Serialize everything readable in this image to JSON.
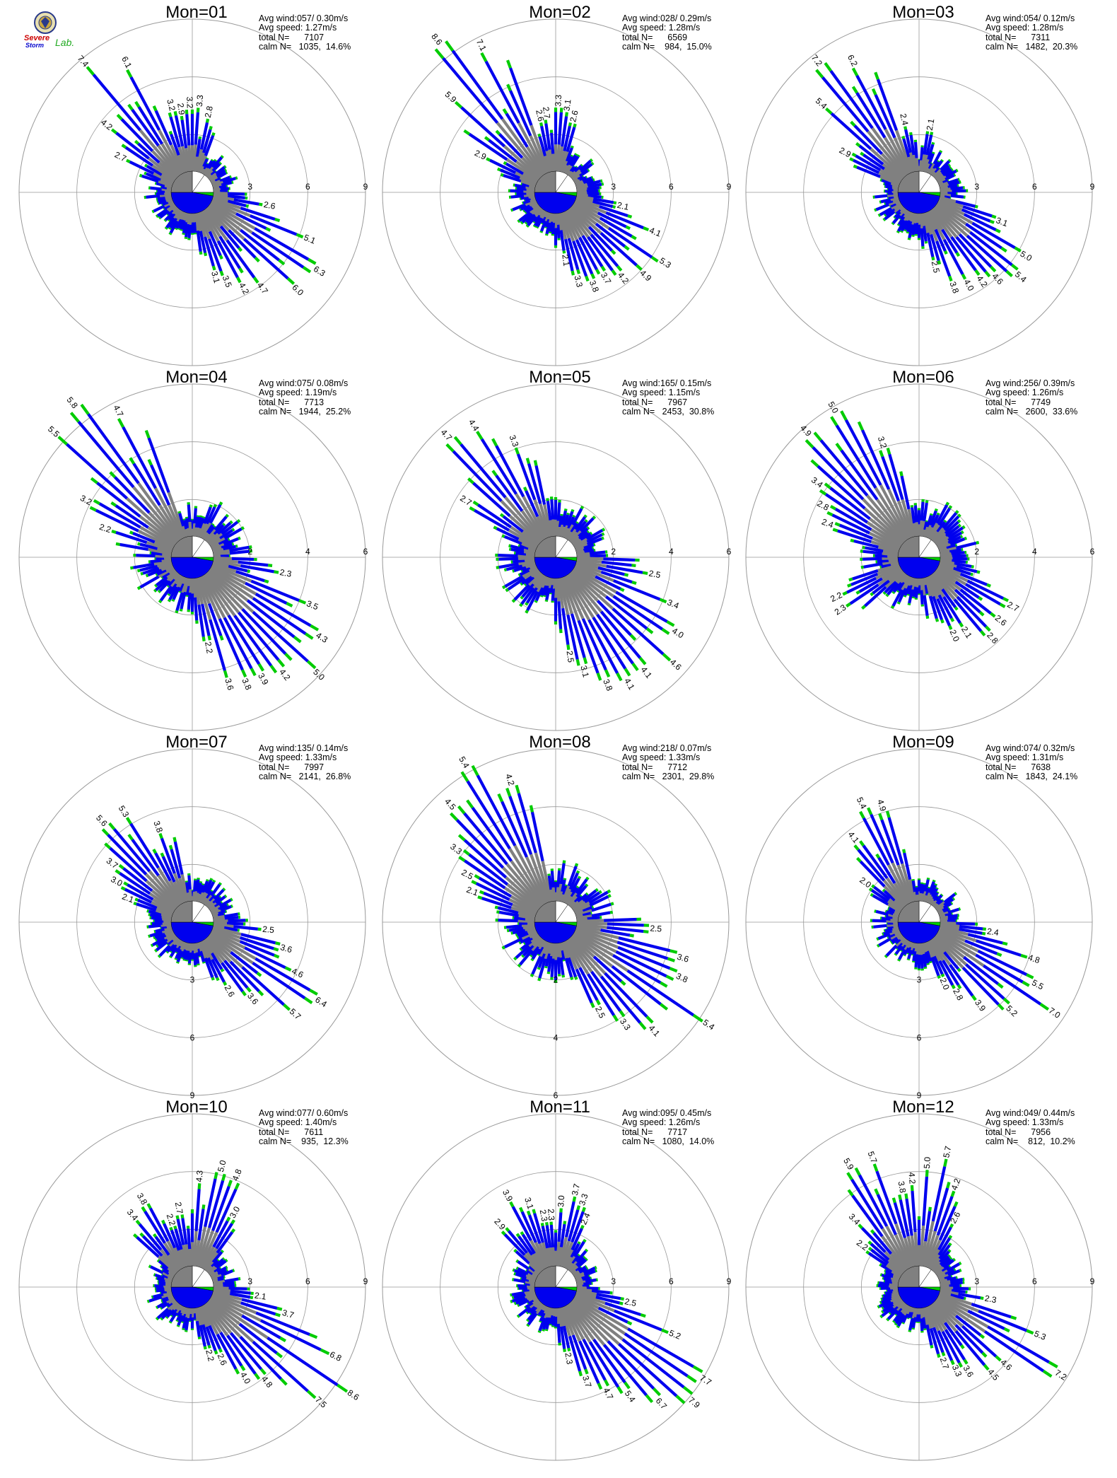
{
  "logo": {
    "line1": "Severe",
    "line2": "Storm",
    "line3": "Lab."
  },
  "colors": {
    "calm": "#808080",
    "low": "#808080",
    "mid": "#0000ee",
    "high": "#00cc00",
    "top": "#ff6600"
  },
  "chart_data": {
    "type": "polar-wind-rose",
    "panels": [
      {
        "title": "Mon=01",
        "avg_wind": "Avg wind:057/ 0.30m/s",
        "avg_speed": "Avg speed: 1.27m/s",
        "total": "total N=      7107",
        "calm": "calm N=   1035,  14.6%",
        "ticks": [
          "3",
          "6",
          "9"
        ],
        "rmax": 9,
        "dominant": "NW,SE",
        "labels": [
          [
            "7.4",
            320
          ],
          [
            "6.1",
            333
          ],
          [
            "4.2",
            308
          ],
          [
            "2.7",
            296
          ],
          [
            "3.2",
            346
          ],
          [
            "2.9",
            352
          ],
          [
            "3.2",
            358
          ],
          [
            "3.3",
            5
          ],
          [
            "2.8",
            12
          ],
          [
            "2.6",
            100
          ],
          [
            "5.1",
            112
          ],
          [
            "6.3",
            122
          ],
          [
            "6.0",
            133
          ],
          [
            "4.7",
            144
          ],
          [
            "4.2",
            152
          ],
          [
            "3.5",
            159
          ],
          [
            "3.1",
            165
          ]
        ]
      },
      {
        "title": "Mon=02",
        "avg_wind": "Avg wind:028/ 0.29m/s",
        "avg_speed": "Avg speed: 1.28m/s",
        "total": "total N=      6569",
        "calm": "calm N=    984,  15.0%",
        "ticks": [
          "3",
          "6",
          "9"
        ],
        "rmax": 9,
        "labels": [
          [
            "8.6",
            322
          ],
          [
            "7.1",
            333
          ],
          [
            "5.9",
            312
          ],
          [
            "2.9",
            296
          ],
          [
            "2.6",
            348
          ],
          [
            "2.7",
            353
          ],
          [
            "3.3",
            2
          ],
          [
            "3.1",
            8
          ],
          [
            "2.6",
            14
          ],
          [
            "2.1",
            102
          ],
          [
            "4.1",
            112
          ],
          [
            "5.3",
            123
          ],
          [
            "4.9",
            133
          ],
          [
            "4.2",
            142
          ],
          [
            "3.7",
            150
          ],
          [
            "3.8",
            158
          ],
          [
            "3.3",
            166
          ],
          [
            "2.1",
            172
          ]
        ]
      },
      {
        "title": "Mon=03",
        "avg_wind": "Avg wind:054/ 0.12m/s",
        "avg_speed": "Avg speed: 1.28m/s",
        "total": "total N=      7311",
        "calm": "calm N=   1482,  20.3%",
        "ticks": [
          "3",
          "6",
          "9"
        ],
        "rmax": 9,
        "labels": [
          [
            "7.2",
            322
          ],
          [
            "6.2",
            333
          ],
          [
            "5.4",
            312
          ],
          [
            "2.9",
            298
          ],
          [
            "2.4",
            348
          ],
          [
            "2.1",
            10
          ],
          [
            "3.1",
            110
          ],
          [
            "5.0",
            121
          ],
          [
            "5.4",
            130
          ],
          [
            "4.6",
            138
          ],
          [
            "4.2",
            145
          ],
          [
            "4.0",
            152
          ],
          [
            "3.8",
            160
          ],
          [
            "2.5",
            168
          ]
        ]
      },
      {
        "title": "Mon=04",
        "avg_wind": "Avg wind:075/ 0.08m/s",
        "avg_speed": "Avg speed: 1.19m/s",
        "total": "total N=      7713",
        "calm": "calm N=   1944,  25.2%",
        "ticks": [
          "2",
          "4",
          "6"
        ],
        "rmax": 6,
        "labels": [
          [
            "5.8",
            322
          ],
          [
            "4.7",
            333
          ],
          [
            "5.5",
            312
          ],
          [
            "3.2",
            298
          ],
          [
            "2.2",
            288
          ],
          [
            "2.3",
            100
          ],
          [
            "3.5",
            112
          ],
          [
            "4.3",
            122
          ],
          [
            "5.0",
            133
          ],
          [
            "4.2",
            142
          ],
          [
            "3.9",
            150
          ],
          [
            "3.8",
            157
          ],
          [
            "3.6",
            164
          ],
          [
            "2.2",
            170
          ]
        ]
      },
      {
        "title": "Mon=05",
        "avg_wind": "Avg wind:165/ 0.15m/s",
        "avg_speed": "Avg speed: 1.15m/s",
        "total": "total N=      7967",
        "calm": "calm N=   2453,  30.8%",
        "ticks": [
          "2",
          "4",
          "6"
        ],
        "rmax": 6,
        "labels": [
          [
            "4.7",
            318
          ],
          [
            "4.4",
            328
          ],
          [
            "3.3",
            340
          ],
          [
            "2.7",
            302
          ],
          [
            "2.5",
            100
          ],
          [
            "3.4",
            112
          ],
          [
            "4.0",
            122
          ],
          [
            "4.6",
            132
          ],
          [
            "4.1",
            142
          ],
          [
            "4.1",
            150
          ],
          [
            "3.8",
            158
          ],
          [
            "3.1",
            166
          ],
          [
            "2.5",
            172
          ]
        ]
      },
      {
        "title": "Mon=06",
        "avg_wind": "Avg wind:256/ 0.39m/s",
        "avg_speed": "Avg speed: 1.26m/s",
        "total": "total N=      7749",
        "calm": "calm N=   2600,  33.6%",
        "ticks": [
          "2",
          "4",
          "6"
        ],
        "rmax": 6,
        "labels": [
          [
            "4.9",
            318
          ],
          [
            "5.0",
            330
          ],
          [
            "3.2",
            342
          ],
          [
            "3.4",
            306
          ],
          [
            "2.8",
            298
          ],
          [
            "2.4",
            290
          ],
          [
            "2.2",
            244
          ],
          [
            "2.3",
            236
          ],
          [
            "2.7",
            118
          ],
          [
            "2.6",
            128
          ],
          [
            "2.8",
            138
          ],
          [
            "2.1",
            148
          ],
          [
            "2.0",
            156
          ]
        ]
      },
      {
        "title": "Mon=07",
        "avg_wind": "Avg wind:135/ 0.14m/s",
        "avg_speed": "Avg speed: 1.33m/s",
        "total": "total N=      7997",
        "calm": "calm N=   2141,  26.8%",
        "ticks": [
          "3",
          "6",
          "9"
        ],
        "rmax": 9,
        "tick_axis": "south",
        "labels": [
          [
            "5.6",
            318
          ],
          [
            "5.3",
            328
          ],
          [
            "3.8",
            340
          ],
          [
            "3.7",
            306
          ],
          [
            "3.0",
            298
          ],
          [
            "2.1",
            290
          ],
          [
            "2.5",
            96
          ],
          [
            "3.6",
            106
          ],
          [
            "4.6",
            116
          ],
          [
            "6.4",
            122
          ],
          [
            "5.7",
            132
          ],
          [
            "3.6",
            142
          ],
          [
            "2.6",
            152
          ]
        ]
      },
      {
        "title": "Mon=08",
        "avg_wind": "Avg wind:218/ 0.07m/s",
        "avg_speed": "Avg speed: 1.33m/s",
        "total": "total N=      7712",
        "calm": "calm N=   2301,  29.8%",
        "ticks": [
          "2",
          "4",
          "6"
        ],
        "rmax": 6,
        "tick_axis": "south",
        "labels": [
          [
            "5.4",
            330
          ],
          [
            "4.2",
            342
          ],
          [
            "4.5",
            318
          ],
          [
            "3.3",
            306
          ],
          [
            "2.5",
            298
          ],
          [
            "2.1",
            290
          ],
          [
            "2.5",
            94
          ],
          [
            "3.6",
            106
          ],
          [
            "3.8",
            114
          ],
          [
            "5.4",
            124
          ],
          [
            "4.1",
            138
          ],
          [
            "3.3",
            146
          ],
          [
            "2.5",
            154
          ]
        ]
      },
      {
        "title": "Mon=09",
        "avg_wind": "Avg wind:074/ 0.32m/s",
        "avg_speed": "Avg speed: 1.31m/s",
        "total": "total N=      7638",
        "calm": "calm N=   1843,  24.1%",
        "ticks": [
          "3",
          "6",
          "9"
        ],
        "rmax": 9,
        "tick_axis": "south",
        "labels": [
          [
            "5.4",
            334
          ],
          [
            "4.9",
            342
          ],
          [
            "4.1",
            322
          ],
          [
            "2.0",
            306
          ],
          [
            "2.4",
            98
          ],
          [
            "4.8",
            108
          ],
          [
            "5.5",
            118
          ],
          [
            "7.0",
            124
          ],
          [
            "5.2",
            134
          ],
          [
            "3.9",
            144
          ],
          [
            "2.8",
            152
          ],
          [
            "2.0",
            158
          ]
        ]
      },
      {
        "title": "Mon=10",
        "avg_wind": "Avg wind:077/ 0.60m/s",
        "avg_speed": "Avg speed: 1.40m/s",
        "total": "total N=      7611",
        "calm": "calm N=    935,  12.3%",
        "ticks": [
          "3",
          "6",
          "9"
        ],
        "rmax": 9,
        "labels": [
          [
            "3.4",
            320
          ],
          [
            "3.8",
            330
          ],
          [
            "2.2",
            342
          ],
          [
            "2.7",
            350
          ],
          [
            "4.3",
            4
          ],
          [
            "5.0",
            14
          ],
          [
            "4.8",
            22
          ],
          [
            "3.0",
            30
          ],
          [
            "2.1",
            98
          ],
          [
            "3.7",
            106
          ],
          [
            "6.8",
            116
          ],
          [
            "8.6",
            124
          ],
          [
            "7.5",
            132
          ],
          [
            "4.8",
            142
          ],
          [
            "4.0",
            150
          ],
          [
            "2.6",
            158
          ],
          [
            "2.2",
            166
          ]
        ]
      },
      {
        "title": "Mon=11",
        "avg_wind": "Avg wind:095/ 0.45m/s",
        "avg_speed": "Avg speed: 1.26m/s",
        "total": "total N=      7717",
        "calm": "calm N=   1080,  14.0%",
        "ticks": [
          "3",
          "6",
          "9"
        ],
        "rmax": 9,
        "labels": [
          [
            "3.9",
            332
          ],
          [
            "2.9",
            318
          ],
          [
            "3.1",
            342
          ],
          [
            "2.3",
            350
          ],
          [
            "2.3",
            356
          ],
          [
            "3.0",
            4
          ],
          [
            "3.7",
            12
          ],
          [
            "3.3",
            18
          ],
          [
            "2.4",
            24
          ],
          [
            "2.5",
            102
          ],
          [
            "5.2",
            112
          ],
          [
            "7.7",
            122
          ],
          [
            "7.9",
            130
          ],
          [
            "6.7",
            138
          ],
          [
            "5.4",
            146
          ],
          [
            "4.7",
            154
          ],
          [
            "3.7",
            162
          ],
          [
            "2.3",
            170
          ]
        ]
      },
      {
        "title": "Mon=12",
        "avg_wind": "Avg wind:049/ 0.44m/s",
        "avg_speed": "Avg speed: 1.33m/s",
        "total": "total N=      7956",
        "calm": "calm N=    812,  10.2%",
        "ticks": [
          "3",
          "6",
          "9"
        ],
        "rmax": 9,
        "labels": [
          [
            "5.9",
            330
          ],
          [
            "5.7",
            340
          ],
          [
            "3.8",
            350
          ],
          [
            "4.2",
            356
          ],
          [
            "5.0",
            4
          ],
          [
            "5.7",
            12
          ],
          [
            "4.2",
            20
          ],
          [
            "2.6",
            28
          ],
          [
            "3.4",
            316
          ],
          [
            "2.2",
            306
          ],
          [
            "2.3",
            100
          ],
          [
            "5.3",
            112
          ],
          [
            "7.2",
            122
          ],
          [
            "4.6",
            132
          ],
          [
            "4.5",
            140
          ],
          [
            "3.6",
            150
          ],
          [
            "3.3",
            156
          ],
          [
            "2.7",
            162
          ]
        ]
      }
    ]
  }
}
